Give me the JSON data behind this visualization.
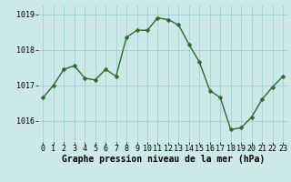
{
  "x": [
    0,
    1,
    2,
    3,
    4,
    5,
    6,
    7,
    8,
    9,
    10,
    11,
    12,
    13,
    14,
    15,
    16,
    17,
    18,
    19,
    20,
    21,
    22,
    23
  ],
  "y": [
    1016.65,
    1017.0,
    1017.45,
    1017.55,
    1017.2,
    1017.15,
    1017.45,
    1017.25,
    1018.35,
    1018.55,
    1018.55,
    1018.9,
    1018.85,
    1018.7,
    1018.15,
    1017.65,
    1016.85,
    1016.65,
    1015.75,
    1015.8,
    1016.1,
    1016.6,
    1016.95,
    1017.25
  ],
  "line_color": "#2d6a2d",
  "marker_color": "#2d6a2d",
  "bg_color": "#cce8e8",
  "grid_color": "#99cccc",
  "xlabel": "Graphe pression niveau de la mer (hPa)",
  "ylim": [
    1015.4,
    1019.25
  ],
  "yticks": [
    1016,
    1017,
    1018,
    1019
  ],
  "xticks": [
    0,
    1,
    2,
    3,
    4,
    5,
    6,
    7,
    8,
    9,
    10,
    11,
    12,
    13,
    14,
    15,
    16,
    17,
    18,
    19,
    20,
    21,
    22,
    23
  ],
  "xlabel_fontsize": 7,
  "tick_fontsize": 6,
  "line_width": 1.0,
  "marker_size": 2.5
}
